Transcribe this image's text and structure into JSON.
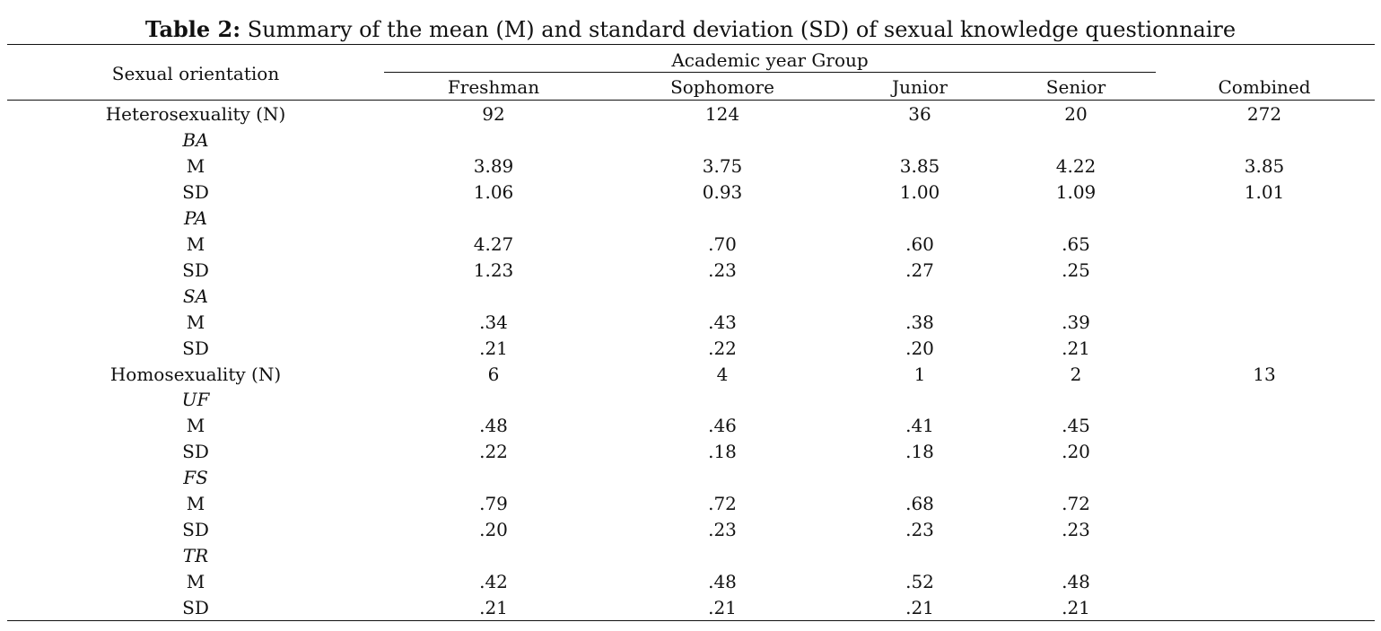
{
  "caption": {
    "lead": "Table 2:",
    "text": " Summary of the mean (M) and standard deviation (SD) of sexual knowledge questionnaire"
  },
  "header": {
    "row_label": "Sexual orientation",
    "group_label": "Academic year Group",
    "columns": [
      "Freshman",
      "Sophomore",
      "Junior",
      "Senior"
    ],
    "combined_label": "Combined"
  },
  "rows": [
    {
      "label": "Heterosexuality (N)",
      "kind": "group",
      "values": [
        "92",
        "124",
        "36",
        "20",
        "272"
      ]
    },
    {
      "label": "BA",
      "kind": "sub",
      "values": [
        "",
        "",
        "",
        "",
        ""
      ]
    },
    {
      "label": "M",
      "kind": "stat",
      "values": [
        "3.89",
        "3.75",
        "3.85",
        "4.22",
        "3.85"
      ]
    },
    {
      "label": "SD",
      "kind": "stat",
      "values": [
        "1.06",
        "0.93",
        "1.00",
        "1.09",
        "1.01"
      ]
    },
    {
      "label": "PA",
      "kind": "sub",
      "values": [
        "",
        "",
        "",
        "",
        ""
      ]
    },
    {
      "label": "M",
      "kind": "stat",
      "values": [
        "4.27",
        ".70",
        ".60",
        ".65",
        ""
      ]
    },
    {
      "label": "SD",
      "kind": "stat",
      "values": [
        "1.23",
        ".23",
        ".27",
        ".25",
        ""
      ]
    },
    {
      "label": "SA",
      "kind": "sub",
      "values": [
        "",
        "",
        "",
        "",
        ""
      ]
    },
    {
      "label": "M",
      "kind": "stat",
      "values": [
        ".34",
        ".43",
        ".38",
        ".39",
        ""
      ]
    },
    {
      "label": "SD",
      "kind": "stat",
      "values": [
        ".21",
        ".22",
        ".20",
        ".21",
        ""
      ]
    },
    {
      "label": "Homosexuality (N)",
      "kind": "group",
      "values": [
        "6",
        "4",
        "1",
        "2",
        "13"
      ]
    },
    {
      "label": "UF",
      "kind": "sub",
      "values": [
        "",
        "",
        "",
        "",
        ""
      ]
    },
    {
      "label": "M",
      "kind": "stat",
      "values": [
        ".48",
        ".46",
        ".41",
        ".45",
        ""
      ]
    },
    {
      "label": "SD",
      "kind": "stat",
      "values": [
        ".22",
        ".18",
        ".18",
        ".20",
        ""
      ]
    },
    {
      "label": "FS",
      "kind": "sub",
      "values": [
        "",
        "",
        "",
        "",
        ""
      ]
    },
    {
      "label": "M",
      "kind": "stat",
      "values": [
        ".79",
        ".72",
        ".68",
        ".72",
        ""
      ]
    },
    {
      "label": "SD",
      "kind": "stat",
      "values": [
        ".20",
        ".23",
        ".23",
        ".23",
        ""
      ]
    },
    {
      "label": "TR",
      "kind": "sub",
      "values": [
        "",
        "",
        "",
        "",
        ""
      ]
    },
    {
      "label": "M",
      "kind": "stat",
      "values": [
        ".42",
        ".48",
        ".52",
        ".48",
        ""
      ]
    },
    {
      "label": "SD",
      "kind": "stat",
      "values": [
        ".21",
        ".21",
        ".21",
        ".21",
        ""
      ]
    }
  ]
}
